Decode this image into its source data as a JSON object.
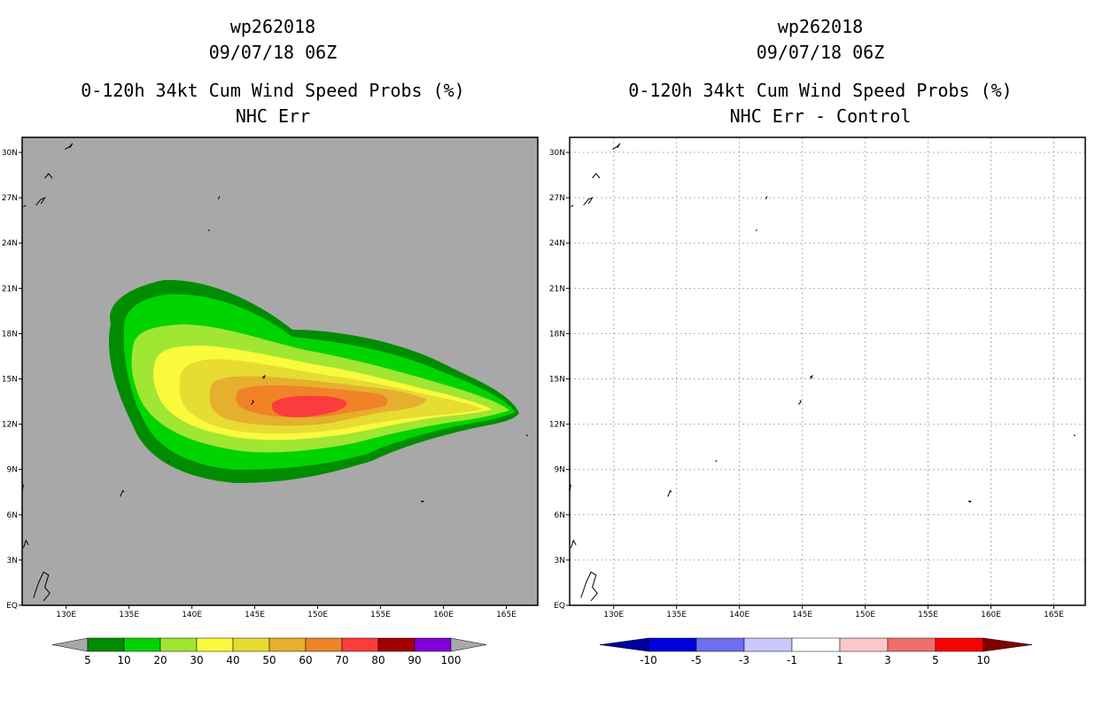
{
  "left_panel": {
    "storm_id": "wp262018",
    "datetime": "09/07/18 06Z",
    "title": "0-120h 34kt Cum Wind Speed Probs (%)",
    "subtitle": "NHC Err",
    "colorbar": {
      "labels": [
        "5",
        "10",
        "20",
        "30",
        "40",
        "50",
        "60",
        "70",
        "80",
        "90",
        "100"
      ],
      "colors": [
        "#008c00",
        "#00d400",
        "#a0e632",
        "#fafa3c",
        "#e6dc32",
        "#e6af2d",
        "#f08228",
        "#fa3c3c",
        "#a00000",
        "#8200dc"
      ],
      "end_color": "#a8a8a8"
    }
  },
  "right_panel": {
    "storm_id": "wp262018",
    "datetime": "09/07/18 06Z",
    "title": "0-120h 34kt Cum Wind Speed Probs (%)",
    "subtitle": "NHC Err - Control",
    "colorbar": {
      "labels": [
        "-10",
        "-5",
        "-3",
        "-1",
        "1",
        "3",
        "5",
        "10"
      ],
      "colors": [
        "#0000dc",
        "#6e6ef0",
        "#c8c8fa",
        "#ffffff",
        "#fac8c8",
        "#f06e6e",
        "#fa0000"
      ],
      "end_left": "#0000a0",
      "end_right": "#820000"
    }
  },
  "map": {
    "lon_labels": [
      "130E",
      "135E",
      "140E",
      "145E",
      "150E",
      "155E",
      "160E",
      "165E"
    ],
    "lon_values": [
      130,
      135,
      140,
      145,
      150,
      155,
      160,
      165
    ],
    "lat_labels": [
      "EQ",
      "3N",
      "6N",
      "9N",
      "12N",
      "15N",
      "18N",
      "21N",
      "24N",
      "27N",
      "30N"
    ],
    "lat_values": [
      0,
      3,
      6,
      9,
      12,
      15,
      18,
      21,
      24,
      27,
      30
    ],
    "lon_range": [
      126.5,
      167.5
    ],
    "lat_range": [
      0,
      31
    ],
    "background_color": "#a8a8a8"
  }
}
